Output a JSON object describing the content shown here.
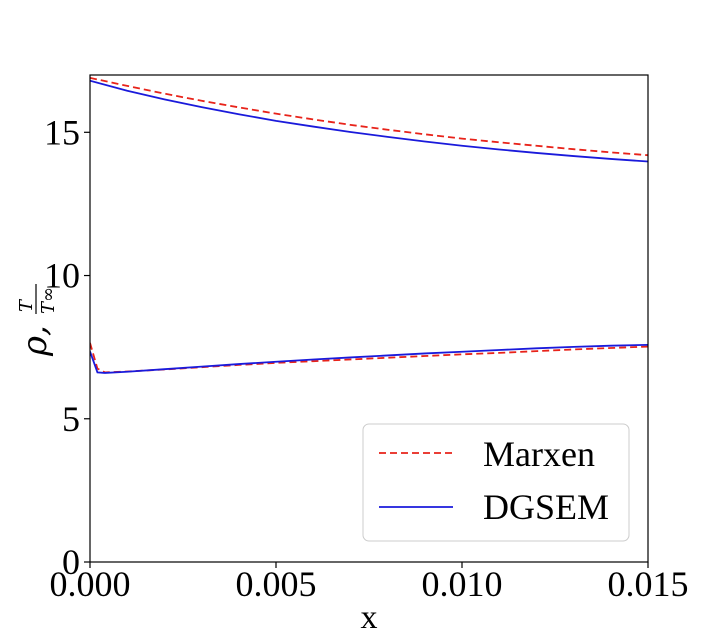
{
  "chart_data": {
    "type": "line",
    "title": "",
    "xlabel": "x",
    "ylabel": {
      "main": "ρ,",
      "fraction_numerator": "T",
      "fraction_denominator": "T∞"
    },
    "xlim": [
      0.0,
      0.015
    ],
    "ylim": [
      0,
      17
    ],
    "xticks": [
      0.0,
      0.005,
      0.01,
      0.015
    ],
    "xtick_labels": [
      "0.000",
      "0.005",
      "0.010",
      "0.015"
    ],
    "yticks": [
      0,
      5,
      10,
      15
    ],
    "ytick_labels": [
      "0",
      "5",
      "10",
      "15"
    ],
    "grid": false,
    "legend_position": "bottom-right",
    "series": [
      {
        "name": "Marxen",
        "role": "temperature",
        "color": "#e8231a",
        "dash": "dashed",
        "legend": true,
        "x": [
          0.0,
          0.001,
          0.002,
          0.003,
          0.004,
          0.005,
          0.006,
          0.007,
          0.008,
          0.009,
          0.01,
          0.011,
          0.012,
          0.013,
          0.014,
          0.015
        ],
        "y": [
          16.9,
          16.62,
          16.35,
          16.1,
          15.87,
          15.65,
          15.45,
          15.26,
          15.09,
          14.93,
          14.78,
          14.65,
          14.53,
          14.41,
          14.3,
          14.2
        ]
      },
      {
        "name": "DGSEM",
        "role": "temperature",
        "color": "#1a1adb",
        "dash": "solid",
        "legend": true,
        "x": [
          0.0,
          0.001,
          0.002,
          0.003,
          0.004,
          0.005,
          0.006,
          0.007,
          0.008,
          0.009,
          0.01,
          0.011,
          0.012,
          0.013,
          0.014,
          0.015
        ],
        "y": [
          16.8,
          16.45,
          16.15,
          15.88,
          15.63,
          15.4,
          15.2,
          15.01,
          14.84,
          14.68,
          14.53,
          14.4,
          14.28,
          14.17,
          14.07,
          13.98
        ]
      },
      {
        "name": "Marxen",
        "role": "density",
        "color": "#e8231a",
        "dash": "dashed",
        "legend": false,
        "x": [
          0.0,
          0.0002,
          0.0004,
          0.001,
          0.002,
          0.003,
          0.004,
          0.005,
          0.006,
          0.007,
          0.008,
          0.009,
          0.01,
          0.011,
          0.012,
          0.013,
          0.014,
          0.015
        ],
        "y": [
          7.65,
          6.75,
          6.62,
          6.65,
          6.72,
          6.8,
          6.88,
          6.95,
          7.01,
          7.07,
          7.13,
          7.19,
          7.25,
          7.3,
          7.36,
          7.42,
          7.47,
          7.52
        ]
      },
      {
        "name": "DGSEM",
        "role": "density",
        "color": "#1a1adb",
        "dash": "solid",
        "legend": false,
        "x": [
          0.0,
          0.0002,
          0.0004,
          0.001,
          0.002,
          0.003,
          0.004,
          0.005,
          0.006,
          0.007,
          0.008,
          0.009,
          0.01,
          0.011,
          0.012,
          0.013,
          0.014,
          0.015
        ],
        "y": [
          7.35,
          6.62,
          6.6,
          6.64,
          6.73,
          6.82,
          6.91,
          6.99,
          7.07,
          7.14,
          7.21,
          7.28,
          7.34,
          7.4,
          7.46,
          7.51,
          7.55,
          7.58
        ]
      }
    ]
  }
}
